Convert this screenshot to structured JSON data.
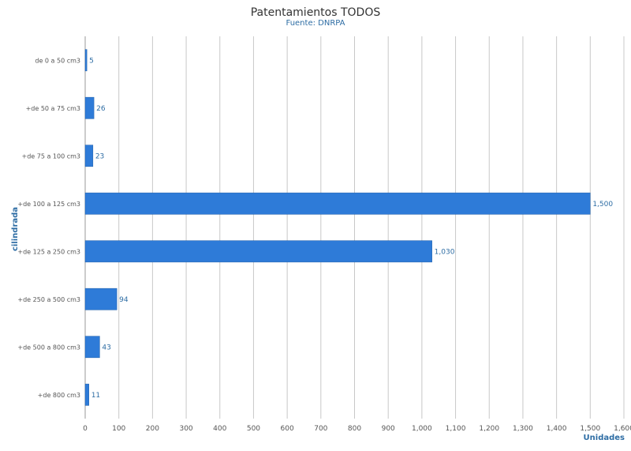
{
  "chart_data": {
    "type": "bar",
    "orientation": "horizontal",
    "title": "Patentamientos TODOS",
    "subtitle": "Fuente: DNRPA",
    "xlabel": "Unidades",
    "ylabel": "cilindrada",
    "categories": [
      "de 0 a 50 cm3",
      "+de 50 a 75 cm3",
      "+de 75 a 100 cm3",
      "+de 100 a 125 cm3",
      "+de 125 a 250 cm3",
      "+de 250 a 500 cm3",
      "+de 500 a 800 cm3",
      "+de 800 cm3"
    ],
    "values": [
      5,
      26,
      23,
      1500,
      1030,
      94,
      43,
      11
    ],
    "data_labels": [
      "5",
      "26",
      "23",
      "1,500",
      "1,030",
      "94",
      "43",
      "11"
    ],
    "xlim": [
      0,
      1600
    ],
    "x_ticks": [
      "0",
      "100",
      "200",
      "300",
      "400",
      "500",
      "600",
      "700",
      "800",
      "900",
      "1,000",
      "1,100",
      "1,200",
      "1,300",
      "1,400",
      "1,500",
      "1,600"
    ],
    "grid": true,
    "bar_color": "#2e7bd8",
    "label_color": "#2e6da4",
    "grid_color": "#c8c8c8"
  }
}
